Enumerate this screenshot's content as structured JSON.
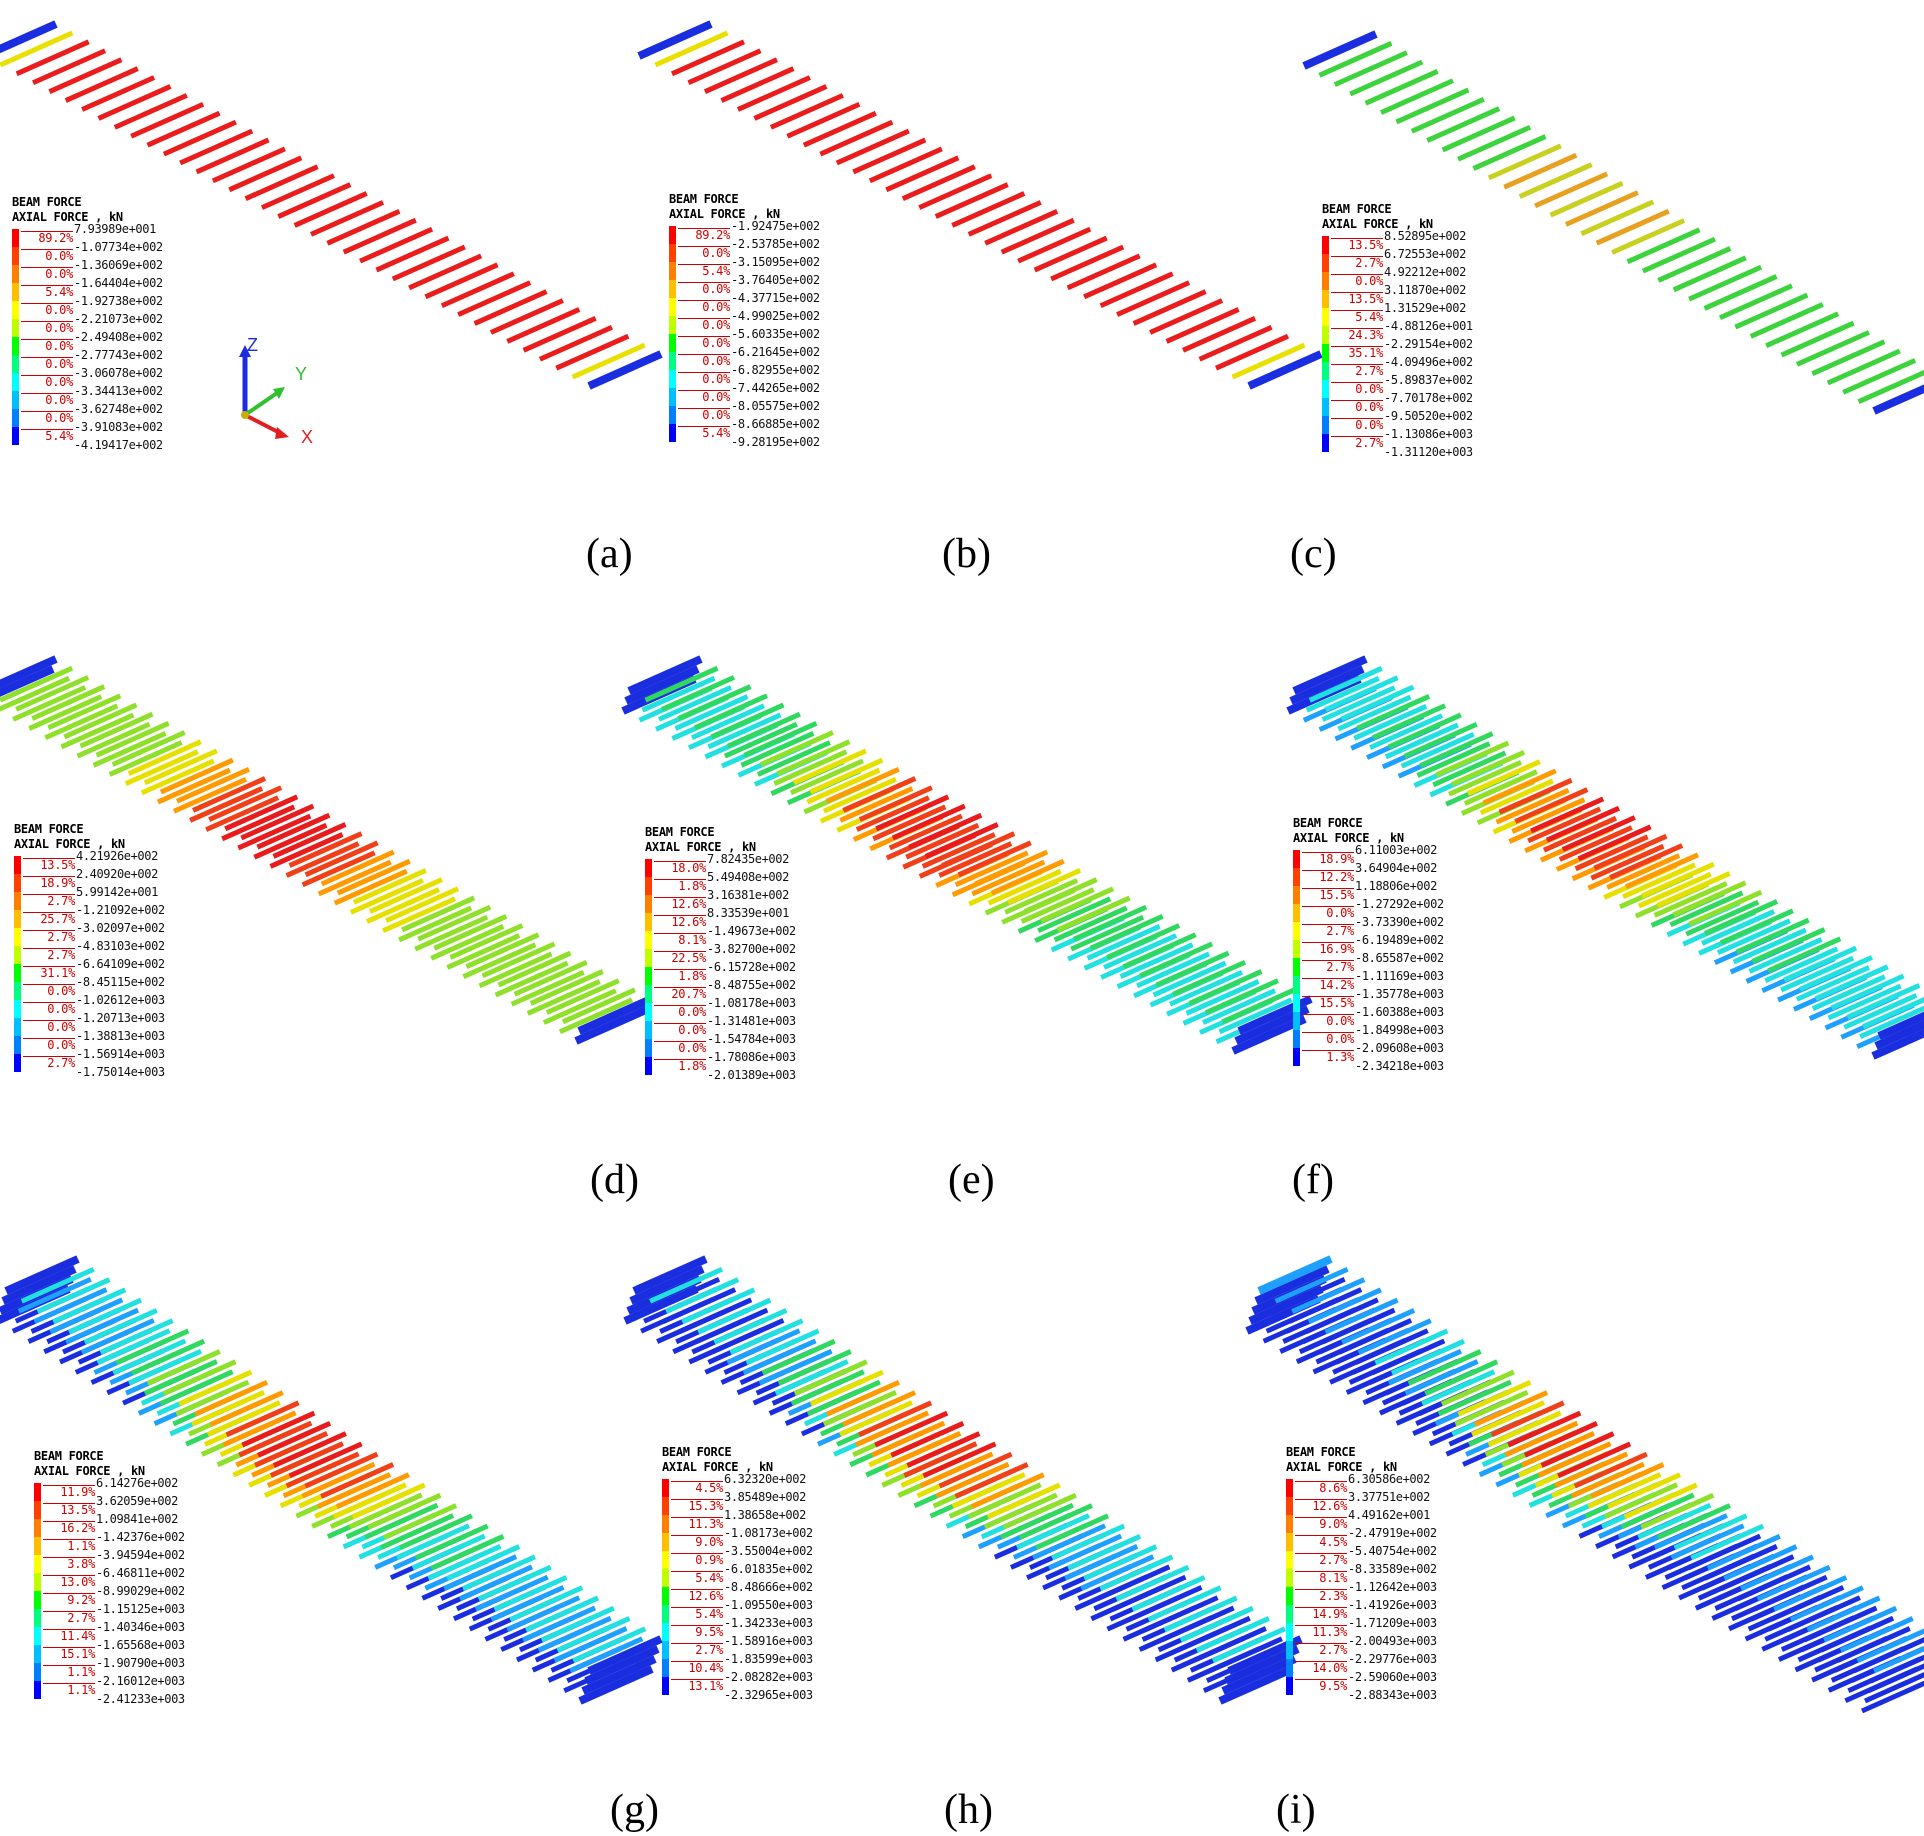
{
  "panels": [
    {
      "caption": "(a)",
      "legend": {
        "title1": "BEAM FORCE",
        "title2": "AXIAL FORCE , kN",
        "values": [
          "7.93989e+001",
          "-1.07734e+002",
          "-1.36069e+002",
          "-1.64404e+002",
          "-1.92738e+002",
          "-2.21073e+002",
          "-2.49408e+002",
          "-2.77743e+002",
          "-3.06078e+002",
          "-3.34413e+002",
          "-3.62748e+002",
          "-3.91083e+002",
          "-4.19417e+002"
        ],
        "percents": [
          "89.2%",
          "0.0%",
          "0.0%",
          "5.4%",
          "0.0%",
          "0.0%",
          "0.0%",
          "0.0%",
          "0.0%",
          "0.0%",
          "0.0%",
          "5.4%"
        ]
      }
    },
    {
      "caption": "(b)",
      "legend": {
        "title1": "BEAM FORCE",
        "title2": "AXIAL FORCE , kN",
        "values": [
          "-1.92475e+002",
          "-2.53785e+002",
          "-3.15095e+002",
          "-3.76405e+002",
          "-4.37715e+002",
          "-4.99025e+002",
          "-5.60335e+002",
          "-6.21645e+002",
          "-6.82955e+002",
          "-7.44265e+002",
          "-8.05575e+002",
          "-8.66885e+002",
          "-9.28195e+002"
        ],
        "percents": [
          "89.2%",
          "0.0%",
          "5.4%",
          "0.0%",
          "0.0%",
          "0.0%",
          "0.0%",
          "0.0%",
          "0.0%",
          "0.0%",
          "0.0%",
          "5.4%"
        ]
      }
    },
    {
      "caption": "(c)",
      "legend": {
        "title1": "BEAM FORCE",
        "title2": "AXIAL FORCE , kN",
        "values": [
          "8.52895e+002",
          "6.72553e+002",
          "4.92212e+002",
          "3.11870e+002",
          "1.31529e+002",
          "-4.88126e+001",
          "-2.29154e+002",
          "-4.09496e+002",
          "-5.89837e+002",
          "-7.70178e+002",
          "-9.50520e+002",
          "-1.13086e+003",
          "-1.31120e+003"
        ],
        "percents": [
          "13.5%",
          "2.7%",
          "0.0%",
          "13.5%",
          "5.4%",
          "24.3%",
          "35.1%",
          "2.7%",
          "0.0%",
          "0.0%",
          "0.0%",
          "2.7%"
        ]
      }
    },
    {
      "caption": "(d)",
      "legend": {
        "title1": "BEAM FORCE",
        "title2": "AXIAL FORCE , kN",
        "values": [
          "4.21926e+002",
          "2.40920e+002",
          "5.99142e+001",
          "-1.21092e+002",
          "-3.02097e+002",
          "-4.83103e+002",
          "-6.64109e+002",
          "-8.45115e+002",
          "-1.02612e+003",
          "-1.20713e+003",
          "-1.38813e+003",
          "-1.56914e+003",
          "-1.75014e+003"
        ],
        "percents": [
          "13.5%",
          "18.9%",
          "2.7%",
          "25.7%",
          "2.7%",
          "2.7%",
          "31.1%",
          "0.0%",
          "0.0%",
          "0.0%",
          "0.0%",
          "2.7%"
        ]
      }
    },
    {
      "caption": "(e)",
      "legend": {
        "title1": "BEAM FORCE",
        "title2": "AXIAL FORCE , kN",
        "values": [
          "7.82435e+002",
          "5.49408e+002",
          "3.16381e+002",
          "8.33539e+001",
          "-1.49673e+002",
          "-3.82700e+002",
          "-6.15728e+002",
          "-8.48755e+002",
          "-1.08178e+003",
          "-1.31481e+003",
          "-1.54784e+003",
          "-1.78086e+003",
          "-2.01389e+003"
        ],
        "percents": [
          "18.0%",
          "1.8%",
          "12.6%",
          "12.6%",
          "8.1%",
          "22.5%",
          "1.8%",
          "20.7%",
          "0.0%",
          "0.0%",
          "0.0%",
          "1.8%"
        ]
      }
    },
    {
      "caption": "(f)",
      "legend": {
        "title1": "BEAM FORCE",
        "title2": "AXIAL FORCE , kN",
        "values": [
          "6.11003e+002",
          "3.64904e+002",
          "1.18806e+002",
          "-1.27292e+002",
          "-3.73390e+002",
          "-6.19489e+002",
          "-8.65587e+002",
          "-1.11169e+003",
          "-1.35778e+003",
          "-1.60388e+003",
          "-1.84998e+003",
          "-2.09608e+003",
          "-2.34218e+003"
        ],
        "percents": [
          "18.9%",
          "12.2%",
          "15.5%",
          "0.0%",
          "2.7%",
          "16.9%",
          "2.7%",
          "14.2%",
          "15.5%",
          "0.0%",
          "0.0%",
          "1.3%"
        ]
      }
    },
    {
      "caption": "(g)",
      "legend": {
        "title1": "BEAM FORCE",
        "title2": "AXIAL FORCE , kN",
        "values": [
          "6.14276e+002",
          "3.62059e+002",
          "1.09841e+002",
          "-1.42376e+002",
          "-3.94594e+002",
          "-6.46811e+002",
          "-8.99029e+002",
          "-1.15125e+003",
          "-1.40346e+003",
          "-1.65568e+003",
          "-1.90790e+003",
          "-2.16012e+003",
          "-2.41233e+003"
        ],
        "percents": [
          "11.9%",
          "13.5%",
          "16.2%",
          "1.1%",
          "3.8%",
          "13.0%",
          "9.2%",
          "2.7%",
          "11.4%",
          "15.1%",
          "1.1%",
          "1.1%"
        ]
      }
    },
    {
      "caption": "(h)",
      "legend": {
        "title1": "BEAM FORCE",
        "title2": "AXIAL FORCE , kN",
        "values": [
          "6.32320e+002",
          "3.85489e+002",
          "1.38658e+002",
          "-1.08173e+002",
          "-3.55004e+002",
          "-6.01835e+002",
          "-8.48666e+002",
          "-1.09550e+003",
          "-1.34233e+003",
          "-1.58916e+003",
          "-1.83599e+003",
          "-2.08282e+003",
          "-2.32965e+003"
        ],
        "percents": [
          "4.5%",
          "15.3%",
          "11.3%",
          "9.0%",
          "0.9%",
          "5.4%",
          "12.6%",
          "5.4%",
          "9.5%",
          "2.7%",
          "10.4%",
          "13.1%"
        ]
      }
    },
    {
      "caption": "(i)",
      "legend": {
        "title1": "BEAM FORCE",
        "title2": "AXIAL FORCE , kN",
        "values": [
          "6.30586e+002",
          "3.37751e+002",
          "4.49162e+001",
          "-2.47919e+002",
          "-5.40754e+002",
          "-8.33589e+002",
          "-1.12642e+003",
          "-1.41926e+003",
          "-1.71209e+003",
          "-2.00493e+003",
          "-2.29776e+003",
          "-2.59060e+003",
          "-2.88343e+003"
        ],
        "percents": [
          "8.6%",
          "12.6%",
          "9.0%",
          "4.5%",
          "2.7%",
          "8.1%",
          "2.3%",
          "14.9%",
          "11.3%",
          "2.7%",
          "14.0%",
          "9.5%"
        ]
      }
    }
  ],
  "axes_triad": {
    "z": "Z",
    "y": "Y",
    "x": "X"
  },
  "colors": {
    "palette": [
      "#ff0000",
      "#ff4000",
      "#ff8000",
      "#ffbf00",
      "#ffff00",
      "#c0ff00",
      "#00ff00",
      "#00ff80",
      "#00ffff",
      "#00bfff",
      "#0080ff",
      "#0000ff"
    ],
    "beam_red": "#ea1c1c",
    "beam_blue": "#1a2ee0",
    "beam_yellow": "#e8e000",
    "beam_green": "#3dd33d"
  }
}
